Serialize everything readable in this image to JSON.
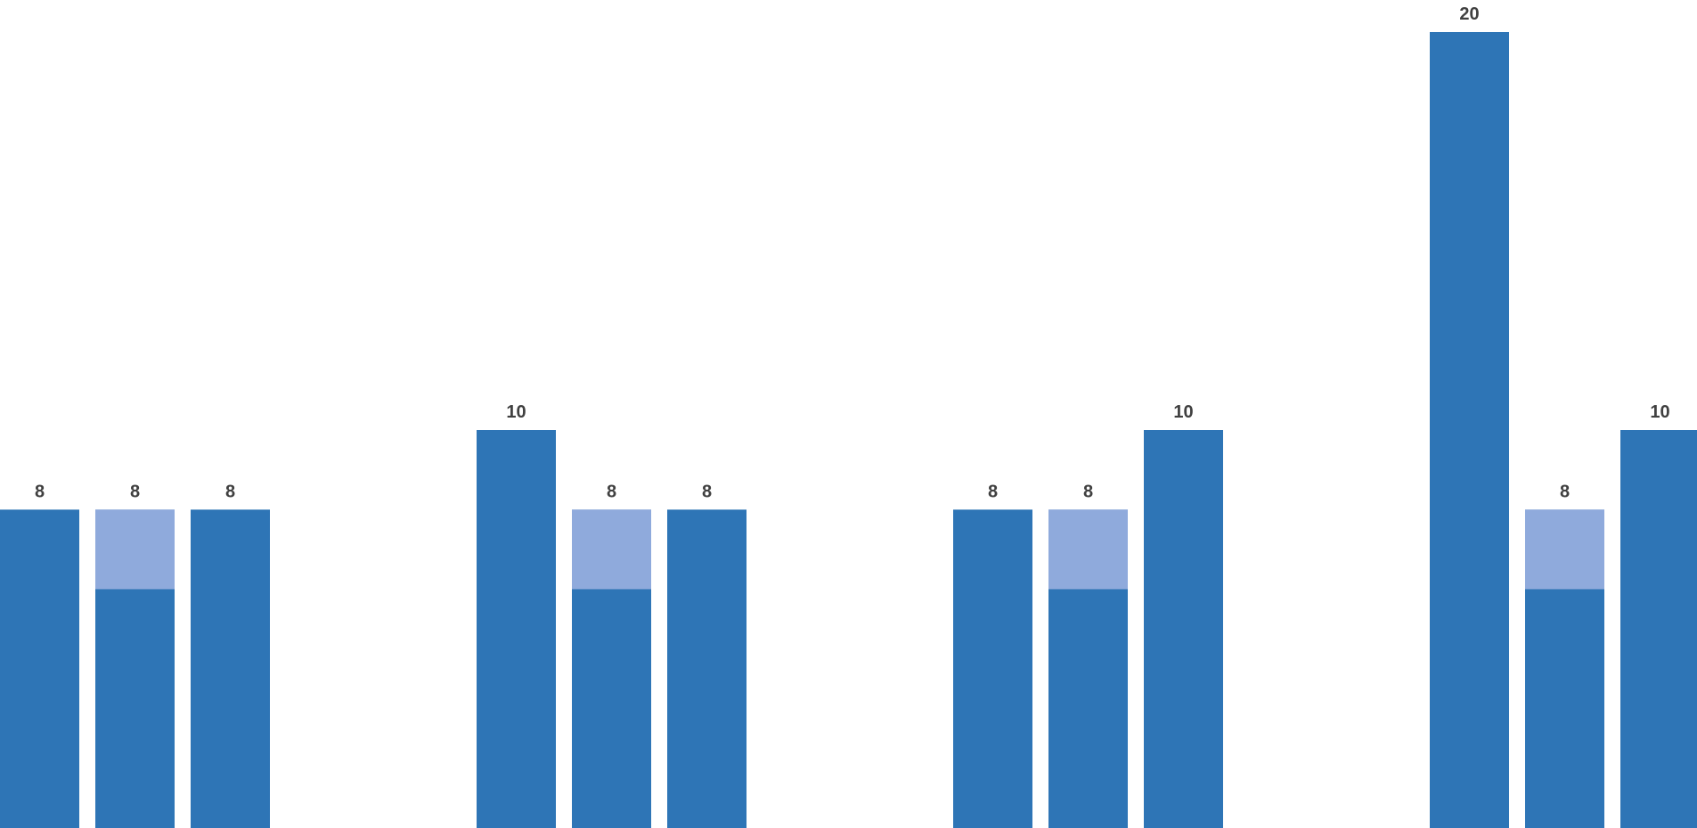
{
  "chart_data": {
    "type": "bar",
    "title": "",
    "xlabel": "",
    "ylabel": "",
    "ylim": [
      0,
      20.8
    ],
    "grid": false,
    "legend": "none",
    "groups": [
      {
        "bars": [
          {
            "value": 8,
            "label": "8",
            "highlight": 0
          },
          {
            "value": 8,
            "label": "8",
            "highlight": 2
          },
          {
            "value": 8,
            "label": "8",
            "highlight": 0
          }
        ]
      },
      {
        "bars": [
          {
            "value": 10,
            "label": "10",
            "highlight": 0
          },
          {
            "value": 8,
            "label": "8",
            "highlight": 2
          },
          {
            "value": 8,
            "label": "8",
            "highlight": 0
          }
        ]
      },
      {
        "bars": [
          {
            "value": 8,
            "label": "8",
            "highlight": 0
          },
          {
            "value": 8,
            "label": "8",
            "highlight": 2
          },
          {
            "value": 10,
            "label": "10",
            "highlight": 0
          }
        ]
      },
      {
        "bars": [
          {
            "value": 20,
            "label": "20",
            "highlight": 0
          },
          {
            "value": 8,
            "label": "8",
            "highlight": 2
          },
          {
            "value": 10,
            "label": "10",
            "highlight": 0
          }
        ]
      }
    ],
    "colors": {
      "primary": "#2E75B6",
      "highlight": "#8FAADC",
      "label": "#404040"
    }
  }
}
